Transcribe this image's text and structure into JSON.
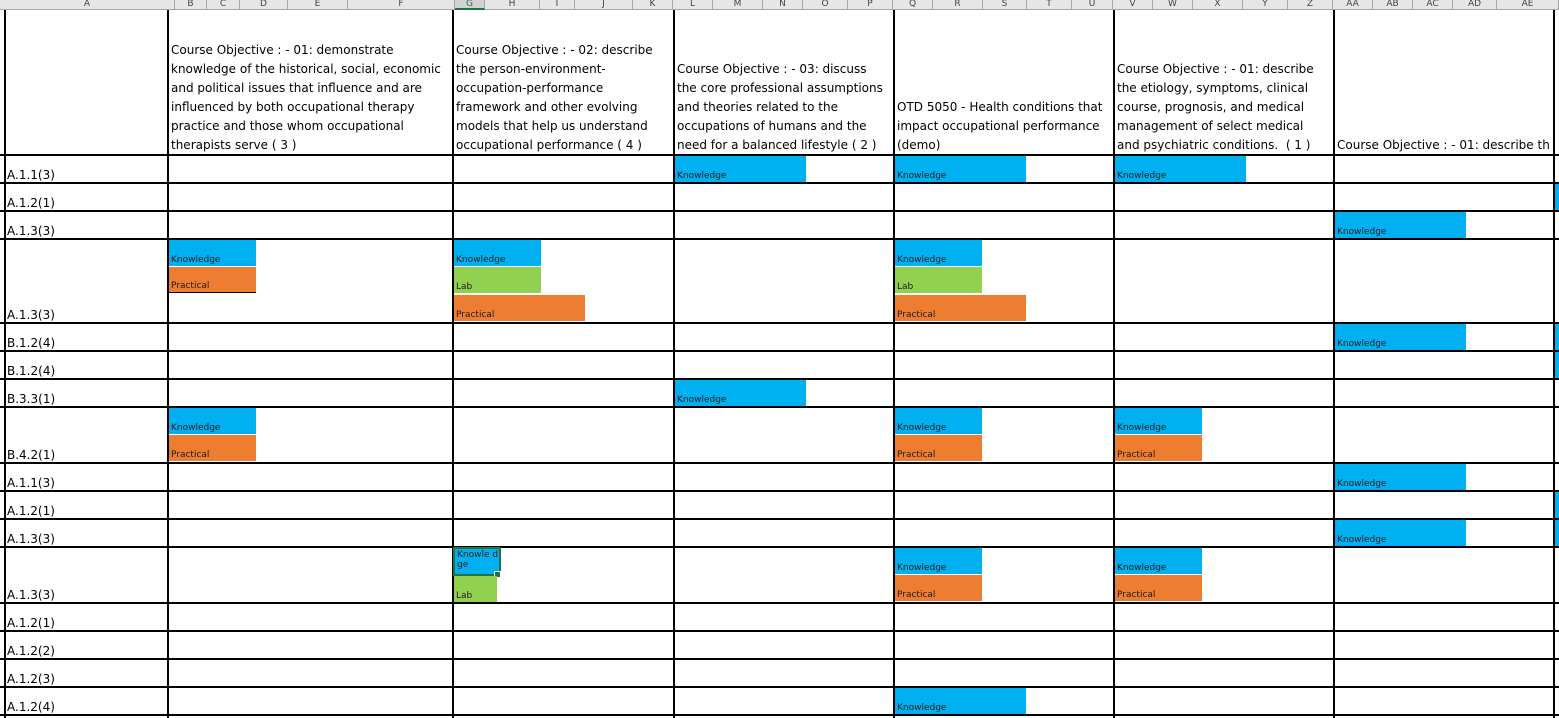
{
  "columns": [
    "A",
    "B",
    "C",
    "D",
    "E",
    "F",
    "G",
    "H",
    "I",
    "J",
    "K",
    "L",
    "M",
    "N",
    "O",
    "P",
    "Q",
    "R",
    "S",
    "T",
    "U",
    "V",
    "W",
    "X",
    "Y",
    "Z",
    "AA",
    "AB",
    "AC",
    "AD",
    "AE"
  ],
  "selected_column": "G",
  "headers": {
    "col1": "Course Objective : - 01: demonstrate\nknowledge of the historical, social, economic\nand political issues that influence and are\ninfluenced by both occupational therapy\npractice and those whom occupational\ntherapists serve ( 3 )",
    "col2": "Course Objective : - 02: describe\nthe person-environment-\noccupation-performance\nframework and other evolving\nmodels that help us understand\noccupational performance ( 4 )",
    "col3": "Course Objective : - 03: discuss\nthe core professional assumptions\nand theories related to the\noccupations of humans and the\nneed for a balanced lifestyle ( 2 )",
    "col4": "OTD 5050 - Health conditions that\nimpact occupational performance\n(demo)",
    "col5": "Course Objective : - 01: describe\nthe etiology, symptoms, clinical\ncourse, prognosis, and medical\nmanagement of select medical\nand psychiatric conditions.  ( 1 )",
    "col6": "Course Objective : - 01: describe th"
  },
  "row_labels": [
    "A.1.1(3)",
    "A.1.2(1)",
    "A.1.3(3)",
    "A.1.3(3)",
    "B.1.2(4)",
    "B.1.2(4)",
    "B.3.3(1)",
    "B.4.2(1)",
    "A.1.1(3)",
    "A.1.2(1)",
    "A.1.3(3)",
    "A.1.3(3)",
    "A.1.2(1)",
    "A.1.2(2)",
    "A.1.2(3)",
    "A.1.2(4)"
  ],
  "labels": {
    "knowledge": "Knowledge",
    "practical": "Practical",
    "lab": "Lab",
    "knowledge_wrapped": "Knowle dge"
  },
  "colors": {
    "knowledge": "#00b0f0",
    "practical": "#ed7d31",
    "lab": "#92d050",
    "selection": "#217346"
  }
}
